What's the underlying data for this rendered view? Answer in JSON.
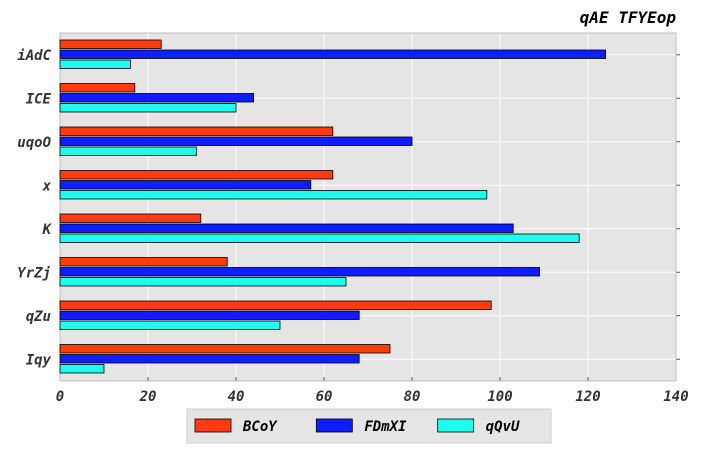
{
  "chart_data": {
    "type": "bar",
    "orientation": "horizontal",
    "title": "qAE TFYEop",
    "xlabel": "",
    "ylabel": "",
    "categories": [
      "iAdC",
      "ICE",
      "uqoO",
      "x",
      "K",
      "YrZj",
      "qZu",
      "Iqy"
    ],
    "series": [
      {
        "name": "BCoY",
        "color": "#ff3b0f",
        "values": [
          23,
          17,
          62,
          62,
          32,
          38,
          98,
          75
        ]
      },
      {
        "name": "FDmXI",
        "color": "#0f1eff",
        "values": [
          124,
          44,
          80,
          57,
          103,
          109,
          68,
          68
        ]
      },
      {
        "name": "qQvU",
        "color": "#1efcee",
        "values": [
          16,
          40,
          31,
          97,
          118,
          65,
          50,
          10
        ]
      }
    ],
    "xlim": [
      0,
      140
    ],
    "xticks": [
      0,
      20,
      40,
      60,
      80,
      100,
      120,
      140
    ],
    "grid": true,
    "legend_position": "bottom-center"
  }
}
